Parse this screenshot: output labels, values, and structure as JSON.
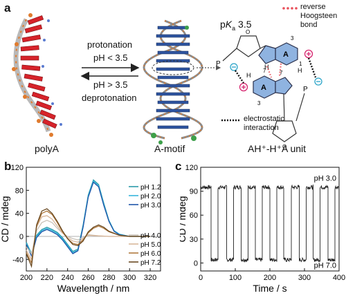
{
  "panel_a": {
    "label": "a",
    "arrow_top": [
      "protonation",
      "pH < 3.5"
    ],
    "arrow_bottom": [
      "pH > 3.5",
      "deprotonation"
    ],
    "caption_left": "polyA",
    "caption_mid": "A-motif",
    "caption_right": "AH⁺-H⁺A unit",
    "pka_p": "p",
    "pka_k": "K",
    "pka_a": "a",
    "pka_value": " 3.5",
    "legend_hoogsteen": [
      "reverse",
      "Hoogsteen",
      "bond"
    ],
    "legend_electrostatic": [
      "electrostatic",
      "interaction"
    ],
    "base_label": "A",
    "atom_labels": {
      "n1": "1",
      "n3": "3",
      "n7": "7",
      "N": "N",
      "H": "H",
      "P": "P",
      "O": "O"
    },
    "colors": {
      "hoogsteen": "#e8505b",
      "ring": "#8fb3e0",
      "ring_stroke": "#2a2f4a",
      "protonated": "#d6246e",
      "anion": "#2aa4c8"
    }
  },
  "panel_b": {
    "label": "b",
    "chart_data": {
      "type": "line",
      "xlabel": "Wavelength / nm",
      "ylabel": "CD / mdeg",
      "xlim": [
        200,
        330
      ],
      "ylim": [
        -60,
        120
      ],
      "xticks": [
        200,
        220,
        240,
        260,
        280,
        300,
        320
      ],
      "yticks": [
        -40,
        0,
        40,
        80,
        120
      ],
      "legend_placement": "right",
      "series": [
        {
          "name": "pH 1.2",
          "color": "#2a9aa8",
          "x": [
            200,
            205,
            210,
            215,
            220,
            225,
            230,
            235,
            240,
            245,
            250,
            255,
            260,
            265,
            270,
            275,
            280,
            285,
            290,
            300,
            310,
            320
          ],
          "y": [
            -10,
            -30,
            2,
            12,
            16,
            12,
            7,
            -2,
            -14,
            -26,
            -22,
            20,
            72,
            98,
            90,
            58,
            28,
            10,
            4,
            0,
            0,
            0
          ]
        },
        {
          "name": "pH 2.0",
          "color": "#35b6dc",
          "x": [
            200,
            205,
            210,
            215,
            220,
            225,
            230,
            235,
            240,
            245,
            250,
            255,
            260,
            265,
            270,
            275,
            280,
            285,
            290,
            300,
            310,
            320
          ],
          "y": [
            -12,
            -32,
            0,
            10,
            14,
            10,
            5,
            -4,
            -16,
            -28,
            -24,
            18,
            70,
            96,
            88,
            56,
            27,
            10,
            4,
            0,
            0,
            0
          ]
        },
        {
          "name": "pH 3.0",
          "color": "#1f55a8",
          "x": [
            200,
            205,
            210,
            215,
            220,
            225,
            230,
            235,
            240,
            245,
            250,
            255,
            260,
            265,
            270,
            275,
            280,
            285,
            290,
            300,
            310,
            320
          ],
          "y": [
            -14,
            -34,
            -2,
            8,
            12,
            8,
            3,
            -6,
            -18,
            -30,
            -25,
            16,
            68,
            94,
            86,
            54,
            26,
            9,
            3,
            0,
            0,
            0
          ]
        },
        {
          "name": "pH 4.0",
          "color": "#c9c2b8",
          "x": [
            200,
            205,
            210,
            215,
            220,
            225,
            230,
            235,
            240,
            245,
            250,
            255,
            260,
            270,
            280,
            290,
            300,
            310,
            320
          ],
          "y": [
            -18,
            -30,
            10,
            24,
            28,
            24,
            14,
            6,
            0,
            -4,
            -6,
            -2,
            3,
            1,
            0,
            0,
            0,
            0,
            0
          ]
        },
        {
          "name": "pH 5.0",
          "color": "#d9b79a",
          "x": [
            200,
            205,
            210,
            215,
            220,
            225,
            230,
            235,
            240,
            245,
            250,
            255,
            260,
            270,
            280,
            290,
            300,
            310,
            320
          ],
          "y": [
            -24,
            -40,
            16,
            34,
            36,
            30,
            18,
            6,
            -2,
            -8,
            -10,
            -4,
            2,
            1,
            0,
            0,
            0,
            0,
            0
          ]
        },
        {
          "name": "pH 6.0",
          "color": "#b07a3e",
          "x": [
            200,
            205,
            210,
            215,
            220,
            225,
            230,
            235,
            240,
            245,
            250,
            255,
            260,
            265,
            270,
            275,
            280,
            290,
            300,
            310,
            320
          ],
          "y": [
            -28,
            -46,
            18,
            40,
            44,
            38,
            24,
            8,
            -4,
            -12,
            -14,
            -6,
            6,
            14,
            18,
            14,
            8,
            2,
            0,
            0,
            0
          ]
        },
        {
          "name": "pH 7.2",
          "color": "#6a4a22",
          "x": [
            200,
            205,
            210,
            215,
            220,
            225,
            230,
            235,
            240,
            245,
            250,
            255,
            260,
            265,
            270,
            275,
            280,
            290,
            300,
            310,
            320
          ],
          "y": [
            -30,
            -52,
            20,
            44,
            48,
            40,
            26,
            10,
            -4,
            -14,
            -16,
            -8,
            8,
            16,
            20,
            16,
            9,
            2,
            0,
            0,
            0
          ]
        }
      ]
    }
  },
  "panel_c": {
    "label": "c",
    "chart_data": {
      "type": "line",
      "xlabel": "Time / s",
      "ylabel": "CD / mdeg",
      "xlim": [
        0,
        400
      ],
      "ylim": [
        -10,
        120
      ],
      "xticks": [
        0,
        100,
        200,
        300,
        400
      ],
      "yticks": [
        0,
        30,
        60,
        90,
        120
      ],
      "annotations": [
        "pH 3.0",
        "pH 7.0"
      ],
      "high_level": 95,
      "low_level": 4,
      "switch_times": [
        0,
        30,
        50,
        75,
        95,
        117,
        137,
        158,
        178,
        200,
        220,
        240,
        262,
        285,
        305,
        325,
        345,
        368,
        388
      ],
      "series": [
        {
          "color": "#222222"
        }
      ]
    }
  }
}
